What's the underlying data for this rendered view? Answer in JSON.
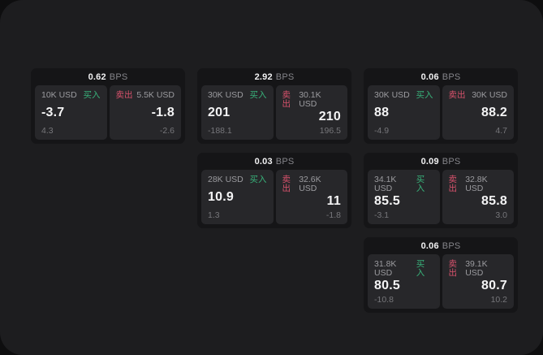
{
  "labels": {
    "buy_tag": "买入",
    "sell_tag": "卖出",
    "bps_unit": "BPS"
  },
  "colors": {
    "buy": "#38b27a",
    "sell": "#d8526c"
  },
  "cards": [
    {
      "bps": "0.62",
      "buy": {
        "amount": "10K USD",
        "value": "-3.7",
        "delta": "4.3"
      },
      "sell": {
        "amount": "5.5K USD",
        "value": "-1.8",
        "delta": "-2.6"
      }
    },
    {
      "bps": "2.92",
      "buy": {
        "amount": "30K USD",
        "value": "201",
        "delta": "-188.1"
      },
      "sell": {
        "amount": "30.1K USD",
        "value": "210",
        "delta": "196.5"
      }
    },
    {
      "bps": "0.06",
      "buy": {
        "amount": "30K USD",
        "value": "88",
        "delta": "-4.9"
      },
      "sell": {
        "amount": "30K USD",
        "value": "88.2",
        "delta": "4.7"
      }
    },
    {
      "bps": "0.03",
      "buy": {
        "amount": "28K USD",
        "value": "10.9",
        "delta": "1.3"
      },
      "sell": {
        "amount": "32.6K USD",
        "value": "11",
        "delta": "-1.8"
      }
    },
    {
      "bps": "0.09",
      "buy": {
        "amount": "34.1K USD",
        "value": "85.5",
        "delta": "-3.1"
      },
      "sell": {
        "amount": "32.8K USD",
        "value": "85.8",
        "delta": "3.0"
      }
    },
    {
      "bps": "0.06",
      "buy": {
        "amount": "31.8K USD",
        "value": "80.5",
        "delta": "-10.8"
      },
      "sell": {
        "amount": "39.1K USD",
        "value": "80.7",
        "delta": "10.2"
      }
    }
  ]
}
